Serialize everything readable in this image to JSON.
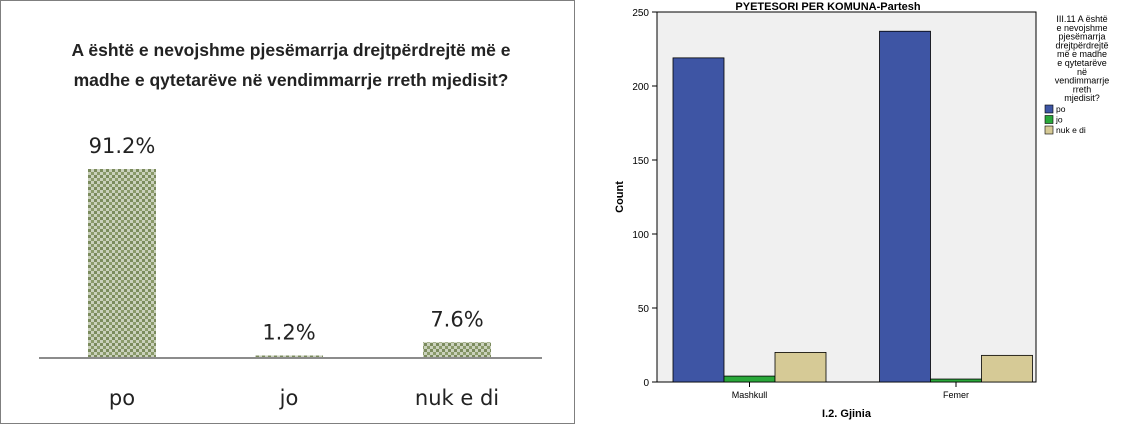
{
  "chart_data": [
    {
      "type": "bar",
      "title": "A është e nevojshme pjesëmarrja drejtpërdrejtë më e madhe e qytetarëve në vendimmarrje rreth mjedisit?",
      "categories": [
        "po",
        "jo",
        "nuk e di"
      ],
      "values": [
        91.2,
        1.2,
        7.6
      ],
      "value_labels": [
        "91.2%",
        "1.2%",
        "7.6%"
      ],
      "unit": "%",
      "ylim": [
        0,
        100
      ],
      "grid": false,
      "bar_pattern": "olive-green checker",
      "colors": {
        "bar": "#8a9a6a",
        "bar_dark": "#5e6e44",
        "axis": "#8c8c8c"
      }
    },
    {
      "type": "bar",
      "title": "PYETESORI PER KOMUNA-Partesh",
      "xlabel": "I.2. Gjinia",
      "ylabel": "Count",
      "categories": [
        "Mashkull",
        "Femer"
      ],
      "series": [
        {
          "name": "po",
          "values": [
            219,
            237
          ],
          "color": "#3e55a4"
        },
        {
          "name": "jo",
          "values": [
            4,
            2
          ],
          "color": "#2aa83a"
        },
        {
          "name": "nuk e di",
          "values": [
            20,
            18
          ],
          "color": "#d6ca96"
        }
      ],
      "ylim": [
        0,
        250
      ],
      "yticks": [
        0,
        50,
        100,
        150,
        200,
        250
      ],
      "legend_title": "III.11 A është e nevojshme pjesëmarrja drejtpërdrejtë më e madhe e qytetarëve në vendimmarrje rreth mjedisit?",
      "legend_title_lines": [
        "III.11 A është",
        "e nevojshme",
        "pjesëmarrja",
        "drejtpërdrejtë",
        "më e madhe",
        "e qytetarëve",
        "në",
        "vendimmarrje",
        "rreth",
        "mjedisit?"
      ],
      "legend_position": "right",
      "grid": false,
      "colors": {
        "plot_background": "#f0f0f0",
        "axis": "#000000"
      }
    }
  ]
}
